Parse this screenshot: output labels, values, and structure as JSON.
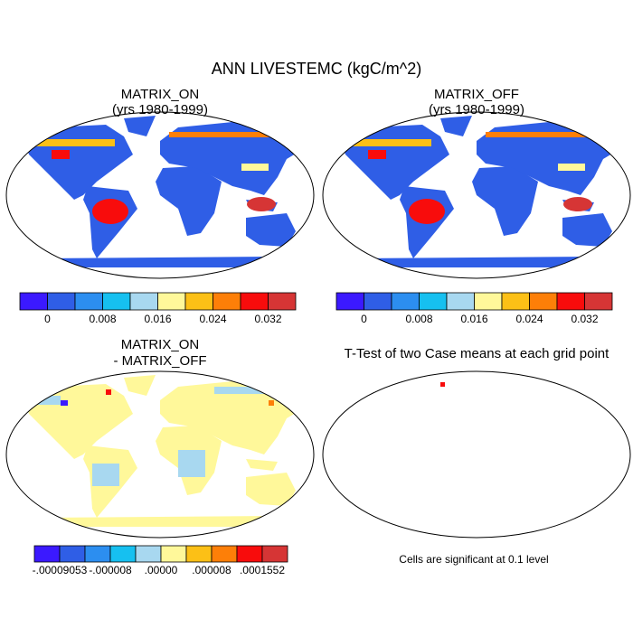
{
  "title": "ANN LIVESTEMC (kgC/m^2)",
  "panels": [
    {
      "title": [
        "MATRIX_ON",
        "(yrs 1980-1999)"
      ]
    },
    {
      "title": [
        "MATRIX_OFF",
        "(yrs 1980-1999)"
      ]
    },
    {
      "title": [
        "MATRIX_ON",
        "- MATRIX_OFF"
      ]
    },
    {
      "title": [
        "T-Test of two Case means at each grid point"
      ],
      "note": "Cells are significant at 0.1 level"
    }
  ],
  "colorbars": [
    {
      "colors": [
        "#3b19ff",
        "#2f5ee6",
        "#2c8ef0",
        "#16c0f0",
        "#a8d8f0",
        "#fff89a",
        "#fcc016",
        "#fd7f08",
        "#f80c0c",
        "#d63535"
      ],
      "labels": [
        "0",
        "0.008",
        "0.016",
        "0.024",
        "0.032"
      ]
    },
    {
      "colors": [
        "#3b19ff",
        "#2f5ee6",
        "#2c8ef0",
        "#16c0f0",
        "#a8d8f0",
        "#fff89a",
        "#fcc016",
        "#fd7f08",
        "#f80c0c",
        "#d63535"
      ],
      "labels": [
        "0",
        "0.008",
        "0.016",
        "0.024",
        "0.032"
      ]
    },
    {
      "colors": [
        "#3b19ff",
        "#2f5ee6",
        "#2c8ef0",
        "#16c0f0",
        "#a8d8f0",
        "#fff89a",
        "#fcc016",
        "#fd7f08",
        "#f80c0c",
        "#d63535"
      ],
      "labels": [
        "-.00009053",
        "-.000008",
        ".00000",
        ".000008",
        ".0001552"
      ]
    }
  ]
}
